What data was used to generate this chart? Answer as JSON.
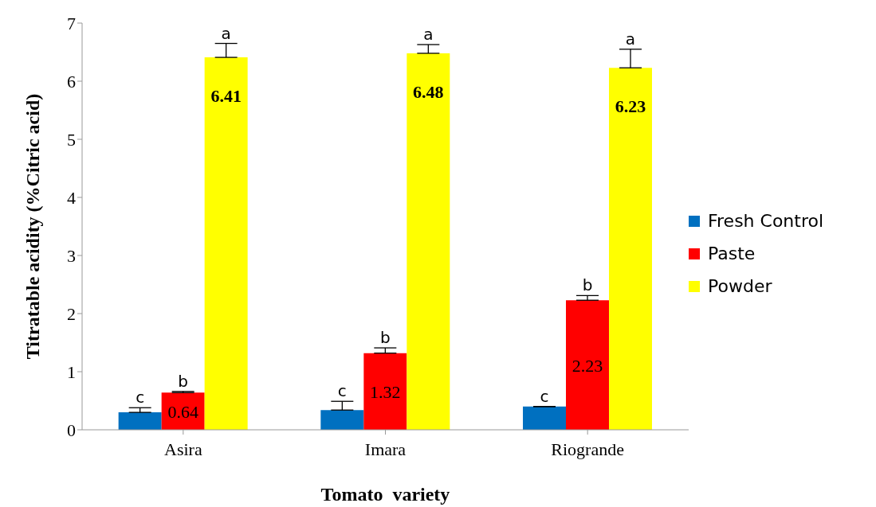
{
  "chart_data": {
    "type": "bar",
    "xlabel": "Tomato  variety",
    "ylabel": "Titratable acidity (%Citric acid)",
    "categories": [
      "Asira",
      "Imara",
      "Riogrande"
    ],
    "series": [
      {
        "name": "Fresh Control",
        "color": "#0070c0",
        "values": [
          0.3,
          0.34,
          0.4
        ],
        "errors": [
          [
            0.3,
            0.38
          ],
          [
            0.34,
            0.49
          ],
          [
            0.4,
            0.4
          ]
        ]
      },
      {
        "name": "Paste",
        "color": "#ff0000",
        "values": [
          0.64,
          1.32,
          2.23
        ],
        "errors": [
          [
            0.64,
            0.66
          ],
          [
            1.32,
            1.41
          ],
          [
            2.23,
            2.31
          ]
        ],
        "value_labels": [
          "0.64",
          "1.32",
          "2.23"
        ]
      },
      {
        "name": "Powder",
        "color": "#ffff00",
        "values": [
          6.41,
          6.48,
          6.23
        ],
        "errors": [
          [
            6.41,
            6.65
          ],
          [
            6.48,
            6.63
          ],
          [
            6.23,
            6.55
          ]
        ],
        "value_labels": [
          "6.41",
          "6.48",
          "6.23"
        ]
      }
    ],
    "annotations": [
      "c",
      "b",
      "a",
      "c",
      "b",
      "a",
      "c",
      "b",
      "a"
    ],
    "ylim": [
      0,
      7
    ],
    "yticks": [
      0,
      1,
      2,
      3,
      4,
      5,
      6,
      7
    ],
    "grid": false,
    "legend": "right"
  }
}
